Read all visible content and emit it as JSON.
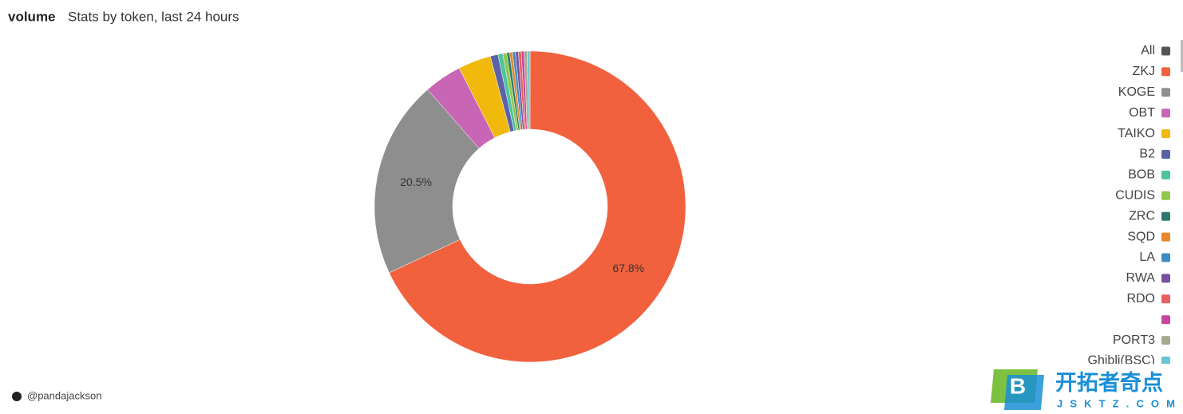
{
  "chart_data": {
    "type": "pie",
    "title": "volume",
    "subtitle": "Stats by token, last 24 hours",
    "categories": [
      "All",
      "ZKJ",
      "KOGE",
      "OBT",
      "TAIKO",
      "B2",
      "BOB",
      "CUDIS",
      "ZRC",
      "SQD",
      "LA",
      "RWA",
      "RDO",
      null,
      "PORT3",
      "Ghibli(BSC)"
    ],
    "values": [
      null,
      67.8,
      20.5,
      3.9,
      3.4,
      0.8,
      0.5,
      0.4,
      0.3,
      0.3,
      0.3,
      0.3,
      0.3,
      0.3,
      0.3,
      0.3
    ],
    "value_labels": [
      null,
      "67.8%",
      "20.5%",
      null,
      null,
      null,
      null,
      null,
      null,
      null,
      null,
      null,
      null,
      null,
      null,
      null
    ],
    "colors": [
      "#555555",
      "#f2613e",
      "#8e8e8e",
      "#c965b5",
      "#f0b90b",
      "#5a63a8",
      "#4dc3a0",
      "#8fc84a",
      "#2a7a6c",
      "#e8862a",
      "#3a8cc8",
      "#7a4fa0",
      "#e86060",
      "#c9479a",
      "#a8a890",
      "#66c8d0"
    ],
    "legend": "right"
  },
  "footer": "@pandajackson",
  "watermark": {
    "name": "开拓者奇点",
    "url": "JSKTZ.COM"
  }
}
